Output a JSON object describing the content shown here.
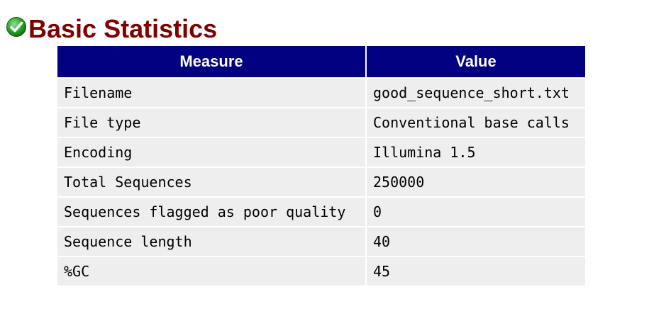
{
  "module": {
    "status_icon": "pass-check-icon",
    "status_color": "#22aa22",
    "title": "Basic Statistics",
    "title_color": "#800000"
  },
  "table": {
    "header_bg": "#000080",
    "cell_bg": "#eeeeee",
    "headers": {
      "measure": "Measure",
      "value": "Value"
    },
    "rows": [
      {
        "measure": "Filename",
        "value": "good_sequence_short.txt"
      },
      {
        "measure": "File type",
        "value": "Conventional base calls"
      },
      {
        "measure": "Encoding",
        "value": "Illumina 1.5"
      },
      {
        "measure": "Total Sequences",
        "value": "250000"
      },
      {
        "measure": "Sequences flagged as poor quality",
        "value": "0"
      },
      {
        "measure": "Sequence length",
        "value": "40"
      },
      {
        "measure": "%GC",
        "value": "45"
      }
    ]
  }
}
